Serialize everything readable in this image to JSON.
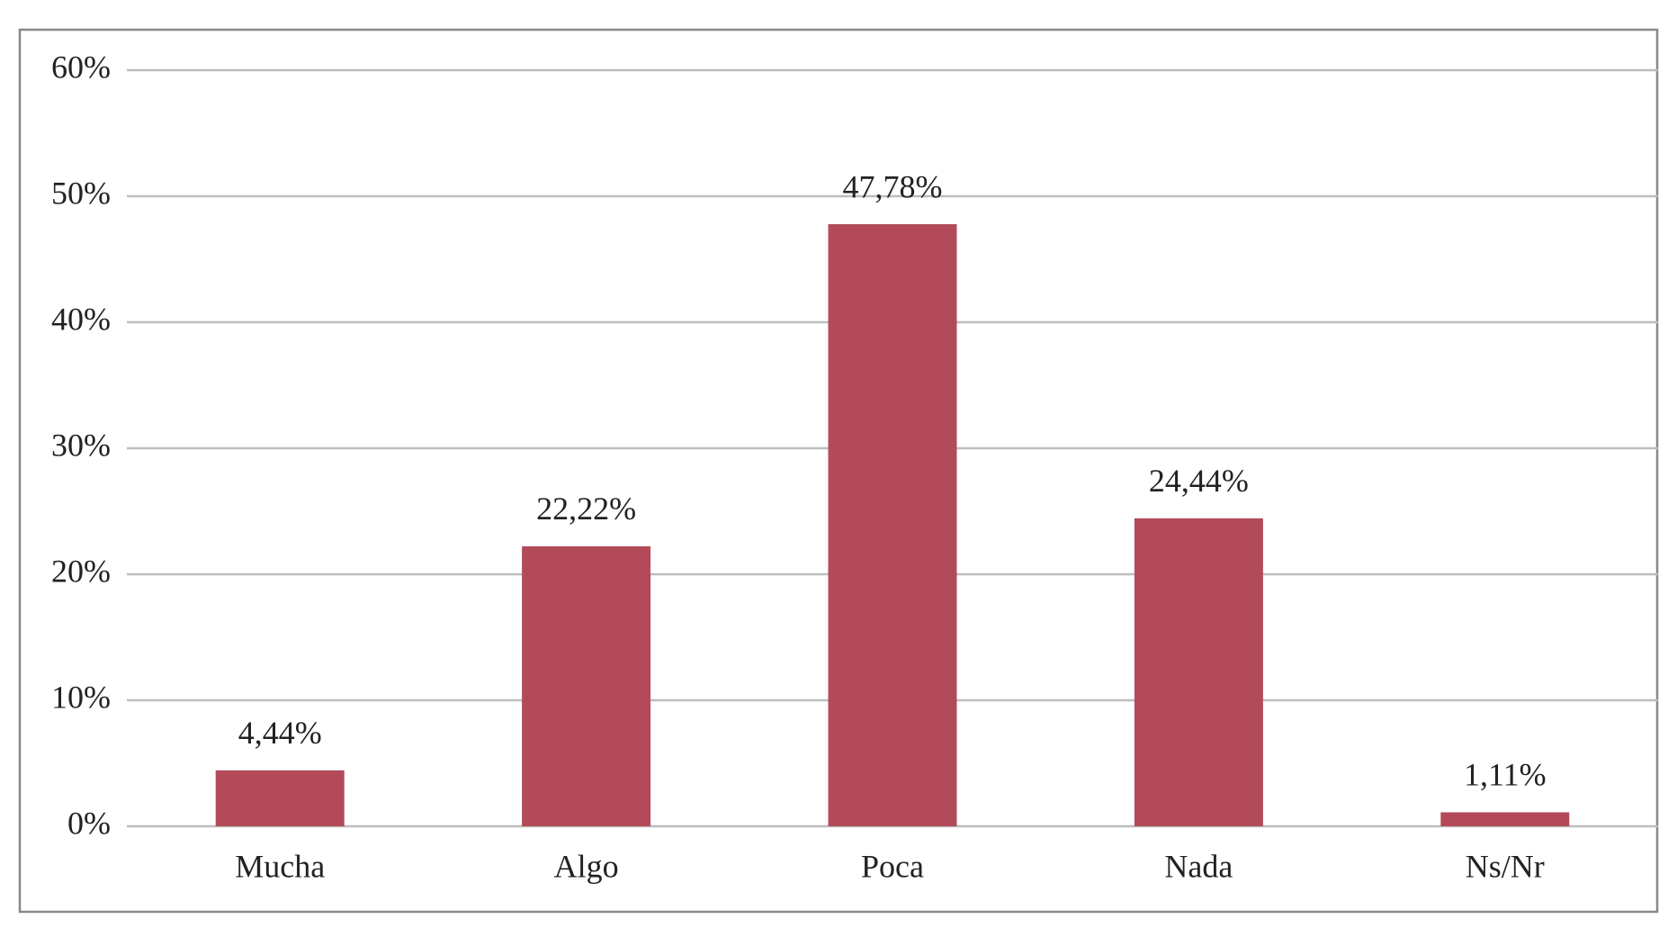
{
  "chart_data": {
    "type": "bar",
    "categories": [
      "Mucha",
      "Algo",
      "Poca",
      "Nada",
      "Ns/Nr"
    ],
    "values": [
      4.44,
      22.22,
      47.78,
      24.44,
      1.11
    ],
    "value_labels": [
      "4,44%",
      "22,22%",
      "47,78%",
      "24,44%",
      "1,11%"
    ],
    "color": "#b24a59",
    "ylim": [
      0,
      60
    ],
    "yticks": [
      {
        "value": 0,
        "label": "0%"
      },
      {
        "value": 10,
        "label": "10%"
      },
      {
        "value": 20,
        "label": "20%"
      },
      {
        "value": 30,
        "label": "30%"
      },
      {
        "value": 40,
        "label": "40%"
      },
      {
        "value": 50,
        "label": "50%"
      },
      {
        "value": 60,
        "label": "60%"
      }
    ],
    "grid": true
  }
}
